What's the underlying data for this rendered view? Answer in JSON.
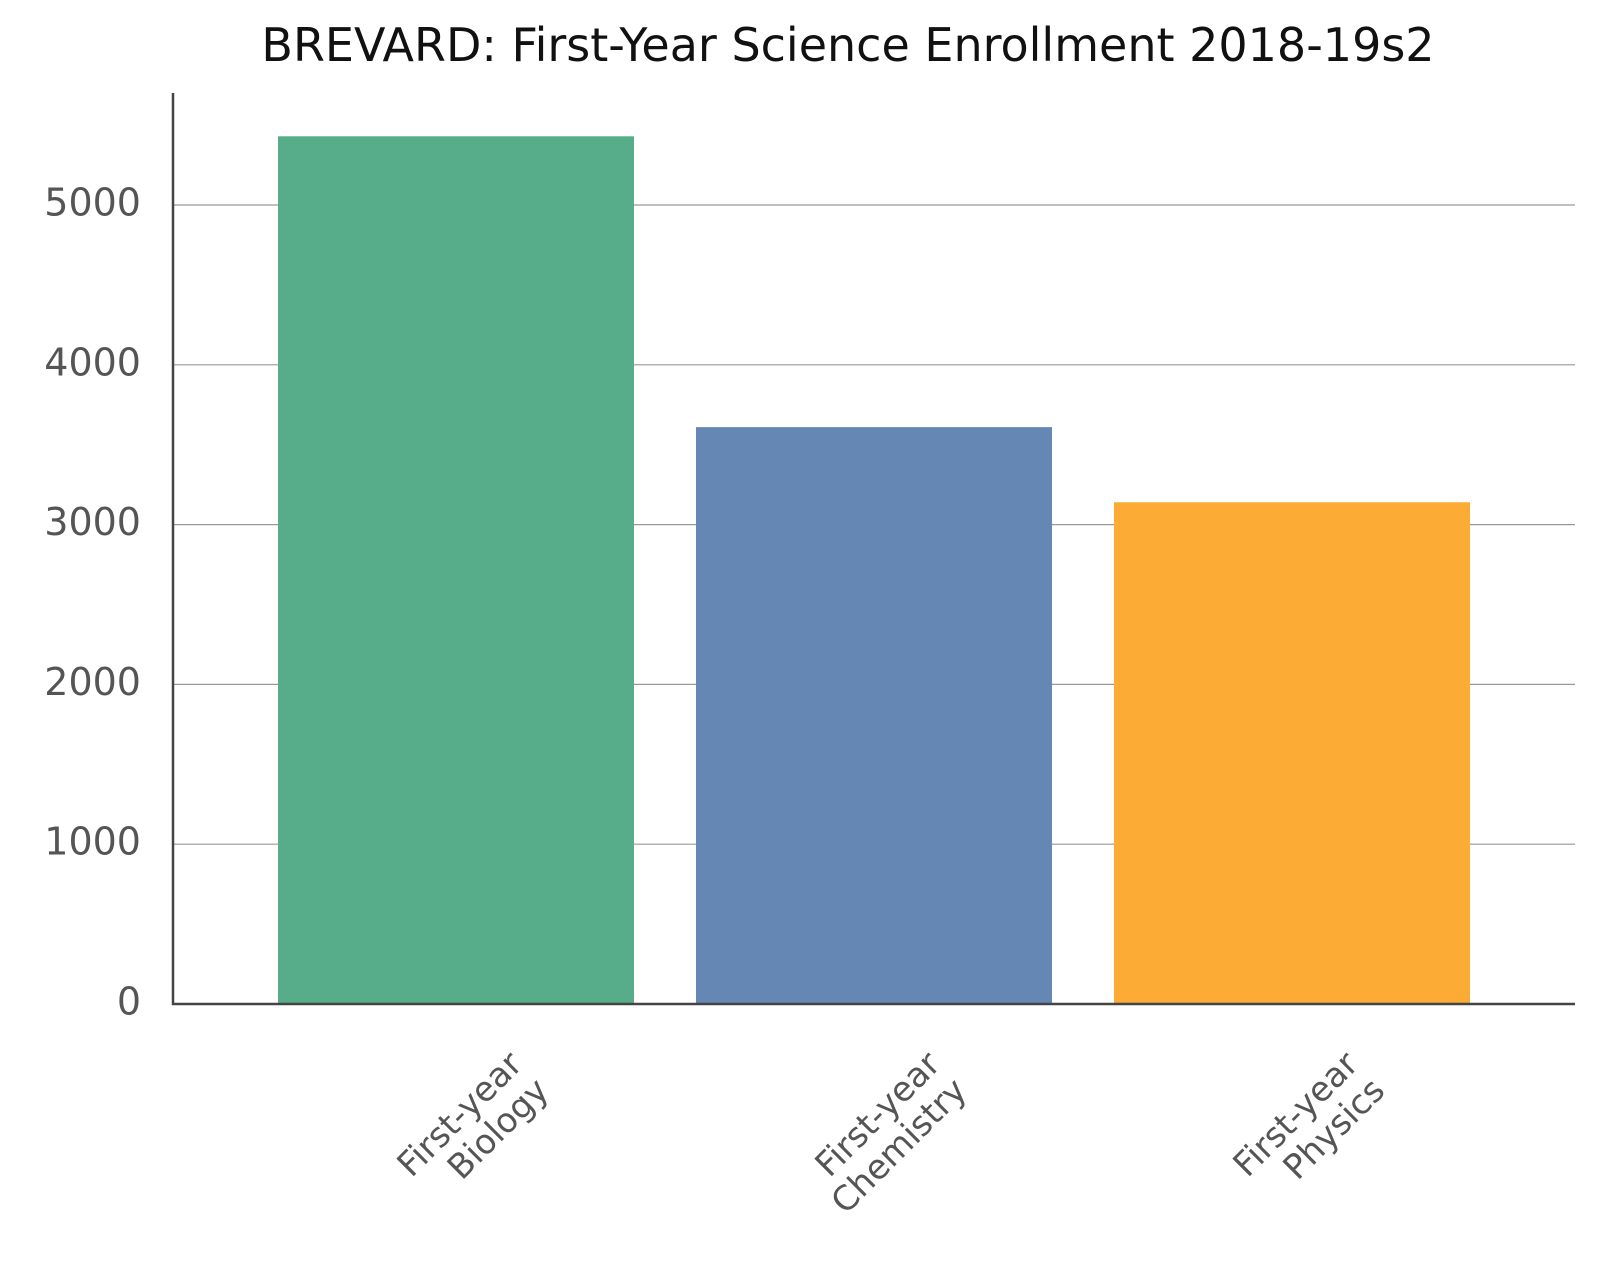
{
  "chart_data": {
    "type": "bar",
    "title": "BREVARD: First-Year Science Enrollment 2018-19s2",
    "xlabel": "",
    "ylabel": "",
    "categories": [
      [
        "First-year",
        "Biology"
      ],
      [
        "First-year",
        "Chemistry"
      ],
      [
        "First-year",
        "Physics"
      ]
    ],
    "values": [
      5430,
      3610,
      3140
    ],
    "colors": [
      "#57ac89",
      "#6488b3",
      "#fcac34"
    ],
    "ylim": [
      0,
      5700
    ],
    "yticks": [
      0,
      1000,
      2000,
      3000,
      4000,
      5000
    ],
    "grid": true
  }
}
